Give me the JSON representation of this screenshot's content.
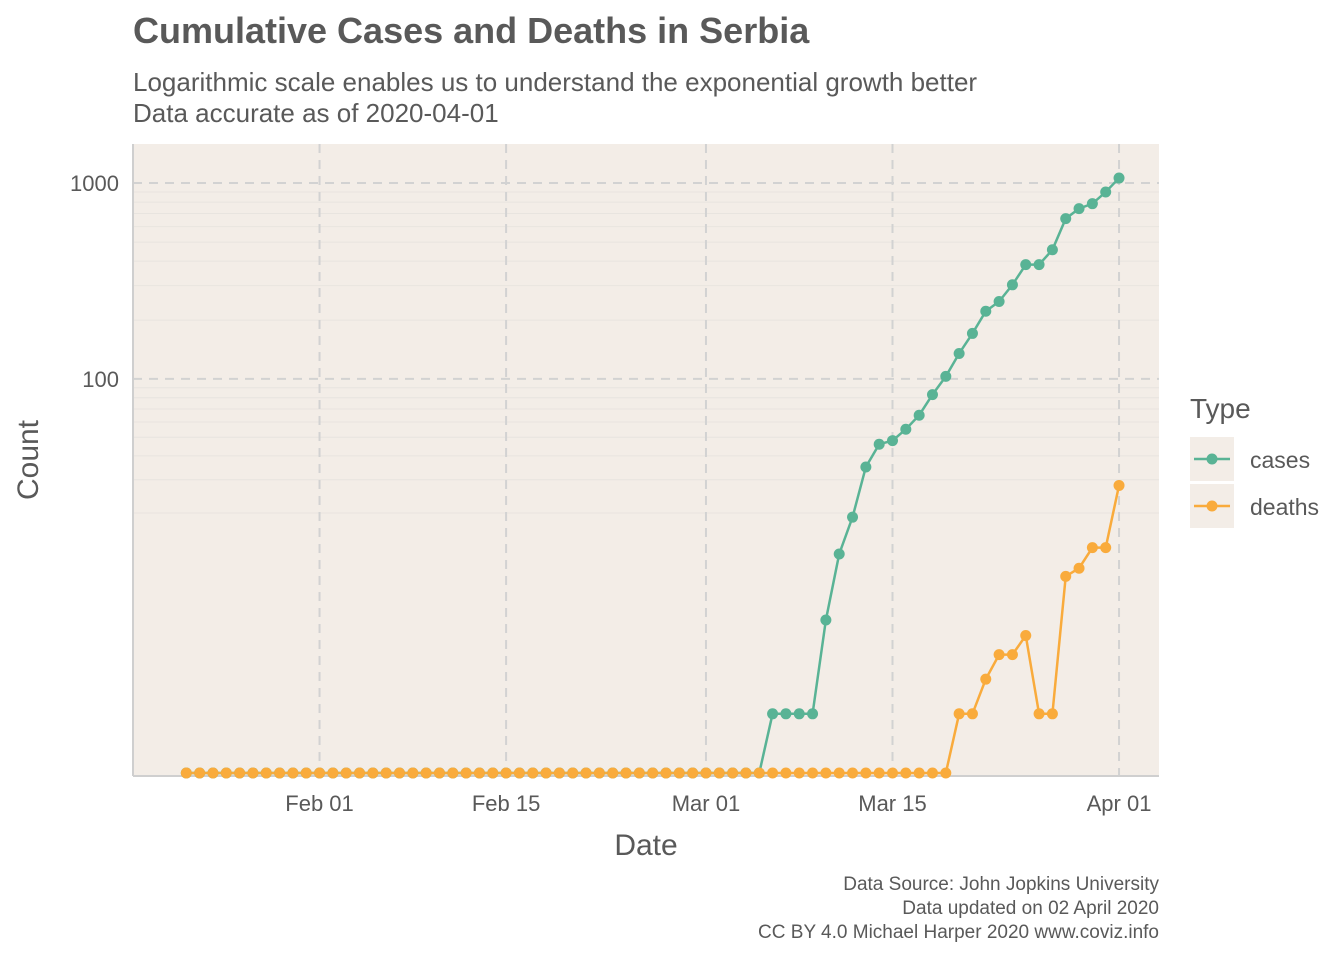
{
  "title": "Cumulative Cases and Deaths in Serbia",
  "subtitle_line1": "Logarithmic scale enables us to understand the exponential growth better",
  "subtitle_line2": "Data accurate as of 2020-04-01",
  "caption": {
    "line1": "Data Source: John Jopkins University",
    "line2": "Data updated on 02 April 2020",
    "line3": "CC BY 4.0 Michael Harper 2020 www.coviz.info"
  },
  "legend": {
    "title": "Type"
  },
  "colors": {
    "cases": "#59b395",
    "deaths": "#f9ab3c",
    "panel": "#f3ede7",
    "grid": "#d2d2d2"
  },
  "chart_data": {
    "type": "line",
    "scale_y": "log10",
    "xlabel": "Date",
    "ylabel": "Count",
    "x_ticks": [
      {
        "date": "2020-02-01",
        "label": "Feb 01"
      },
      {
        "date": "2020-02-15",
        "label": "Feb 15"
      },
      {
        "date": "2020-03-01",
        "label": "Mar 01"
      },
      {
        "date": "2020-03-15",
        "label": "Mar 15"
      },
      {
        "date": "2020-04-01",
        "label": "Apr 01"
      }
    ],
    "y_ticks": [
      {
        "value": 100,
        "label": "100"
      },
      {
        "value": 1000,
        "label": "1000"
      }
    ],
    "xlim": [
      "2020-01-18",
      "2020-04-04"
    ],
    "x_start": "2020-01-22",
    "series": [
      {
        "name": "cases",
        "values": [
          0,
          0,
          0,
          0,
          0,
          0,
          0,
          0,
          0,
          0,
          0,
          0,
          0,
          0,
          0,
          0,
          0,
          0,
          0,
          0,
          0,
          0,
          0,
          0,
          0,
          0,
          0,
          0,
          0,
          0,
          0,
          0,
          0,
          0,
          0,
          0,
          0,
          0,
          0,
          0,
          0,
          0,
          0,
          0,
          1,
          1,
          1,
          1,
          5,
          12,
          19,
          35,
          46,
          48,
          55,
          65,
          83,
          103,
          135,
          171,
          222,
          249,
          303,
          384,
          384,
          457,
          659,
          741,
          785,
          900,
          1060
        ]
      },
      {
        "name": "deaths",
        "values": [
          0,
          0,
          0,
          0,
          0,
          0,
          0,
          0,
          0,
          0,
          0,
          0,
          0,
          0,
          0,
          0,
          0,
          0,
          0,
          0,
          0,
          0,
          0,
          0,
          0,
          0,
          0,
          0,
          0,
          0,
          0,
          0,
          0,
          0,
          0,
          0,
          0,
          0,
          0,
          0,
          0,
          0,
          0,
          0,
          0,
          0,
          0,
          0,
          0,
          0,
          0,
          0,
          0,
          0,
          0,
          0,
          0,
          0,
          1,
          1,
          2,
          3,
          3,
          4,
          1,
          1,
          9,
          10,
          13,
          13,
          28
        ]
      }
    ]
  }
}
